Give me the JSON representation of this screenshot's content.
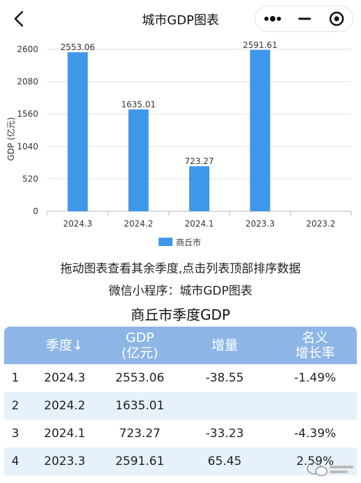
{
  "header": {
    "title": "城市GDP图表"
  },
  "chart_data": {
    "type": "bar",
    "categories": [
      "2024.3",
      "2024.2",
      "2024.1",
      "2023.3",
      "2023.2"
    ],
    "series": [
      {
        "name": "商丘市",
        "values": [
          2553.06,
          1635.01,
          723.27,
          2591.61,
          null
        ],
        "color": "#3f97ea"
      }
    ],
    "ylabel": "GDP (亿元)",
    "yticks": [
      0,
      520,
      1040,
      1560,
      2080,
      2600
    ],
    "ylim": [
      0,
      2600
    ],
    "data_labels": [
      "2553.06",
      "1635.01",
      "723.27",
      "2591.61",
      ""
    ],
    "legend_position": "bottom",
    "grid": true
  },
  "hints": {
    "line1": "拖动图表查看其余季度,点击列表顶部排序数据",
    "line2": "微信小程序：城市GDP图表"
  },
  "table": {
    "title": "商丘市季度GDP",
    "header_color": "#8db6e6",
    "headers": {
      "quarter": "季度↓",
      "gdp_line1": "GDP",
      "gdp_line2": "(亿元)",
      "increase": "增量",
      "rate_line1": "名义",
      "rate_line2": "增长率"
    },
    "rows": [
      {
        "rank": "1",
        "quarter": "2024.3",
        "gdp": "2553.06",
        "increase": "-38.55",
        "rate": "-1.49%"
      },
      {
        "rank": "2",
        "quarter": "2024.2",
        "gdp": "1635.01",
        "increase": "",
        "rate": ""
      },
      {
        "rank": "3",
        "quarter": "2024.1",
        "gdp": "723.27",
        "increase": "-33.23",
        "rate": "-4.39%"
      },
      {
        "rank": "4",
        "quarter": "2023.3",
        "gdp": "2591.61",
        "increase": "65.45",
        "rate": "2.59%"
      }
    ]
  }
}
